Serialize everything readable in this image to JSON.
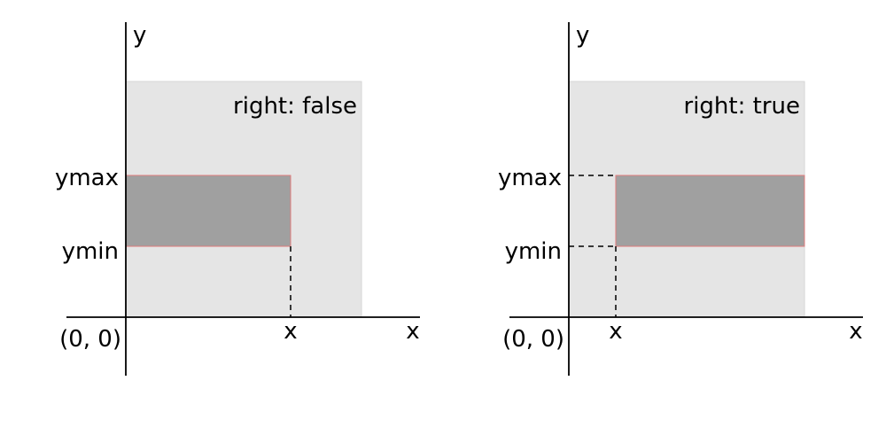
{
  "colors": {
    "background_region": "#e5e5e5",
    "region_border": "#d6d6d6",
    "rect_fill": "#a0a0a0",
    "rect_stroke": "#e07c7c",
    "axis": "#000000"
  },
  "panels": [
    {
      "label": "right: false",
      "y_axis_label": "y",
      "x_axis_label": "x",
      "origin_label": "(0, 0)",
      "ymax_label": "ymax",
      "ymin_label": "ymin",
      "x_marker_label": "x"
    },
    {
      "label": "right: true",
      "y_axis_label": "y",
      "x_axis_label": "x",
      "origin_label": "(0, 0)",
      "ymax_label": "ymax",
      "ymin_label": "ymin",
      "x_marker_label": "x"
    }
  ]
}
